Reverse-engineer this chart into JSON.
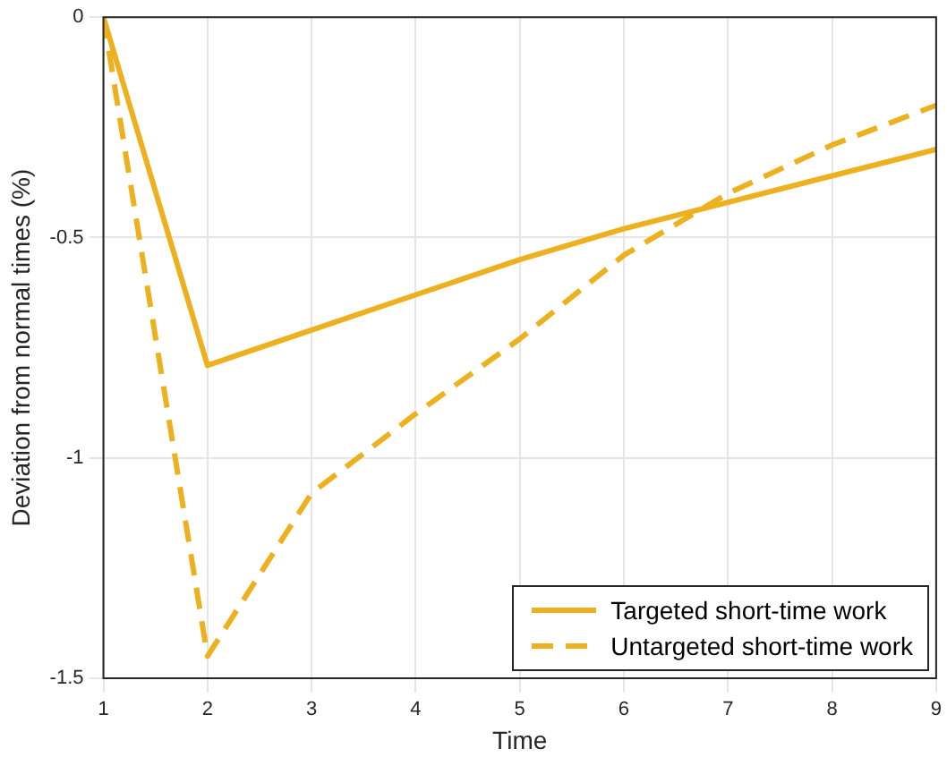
{
  "chart_data": {
    "type": "line",
    "xlabel": "Time",
    "ylabel": "Deviation from normal times (%)",
    "x": [
      1,
      2,
      3,
      4,
      5,
      6,
      7,
      8,
      9
    ],
    "series": [
      {
        "name": "Targeted short-time work",
        "color": "#edb120",
        "line_style": "solid",
        "values": [
          0,
          -0.79,
          -0.71,
          -0.63,
          -0.55,
          -0.48,
          -0.42,
          -0.36,
          -0.3
        ]
      },
      {
        "name": "Untargeted short-time work",
        "color": "#edb120",
        "line_style": "dashed",
        "values": [
          0,
          -1.45,
          -1.08,
          -0.9,
          -0.73,
          -0.54,
          -0.4,
          -0.29,
          -0.2
        ]
      }
    ],
    "xlim": [
      1,
      9
    ],
    "xticks": [
      1,
      2,
      3,
      4,
      5,
      6,
      7,
      8,
      9
    ],
    "ylim": [
      -1.5,
      0
    ],
    "yticks": [
      -1.5,
      -1,
      -0.5,
      0
    ],
    "grid": true,
    "legend": "bottom right",
    "marker": "none"
  }
}
